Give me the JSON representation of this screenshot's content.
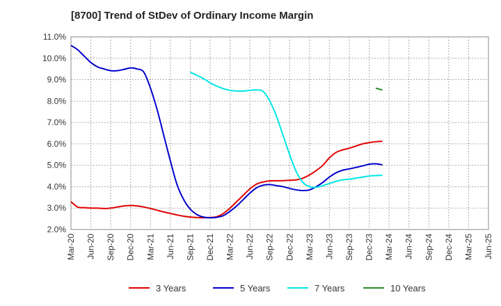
{
  "chart_data": {
    "type": "line",
    "title": "[8700]  Trend of StDev of Ordinary Income Margin",
    "xlabel": "",
    "ylabel": "",
    "x_ticks": [
      "Mar-20",
      "Jun-20",
      "Sep-20",
      "Dec-20",
      "Mar-21",
      "Jun-21",
      "Sep-21",
      "Dec-21",
      "Mar-22",
      "Jun-22",
      "Sep-22",
      "Dec-22",
      "Mar-23",
      "Jun-23",
      "Sep-23",
      "Dec-23",
      "Mar-24",
      "Jun-24",
      "Sep-24",
      "Dec-24",
      "Mar-25",
      "Jun-25"
    ],
    "y_ticks": [
      "2.0%",
      "3.0%",
      "4.0%",
      "5.0%",
      "6.0%",
      "7.0%",
      "8.0%",
      "9.0%",
      "10.0%",
      "11.0%"
    ],
    "ylim": [
      2.0,
      11.0
    ],
    "grid": true,
    "legend_position": "bottom",
    "series": [
      {
        "name": "3 Years",
        "color": "#e00000",
        "start_index": 0,
        "values": [
          3.3,
          3.05,
          3.02,
          3.0,
          3.0,
          2.98,
          3.0,
          3.05,
          3.1,
          3.12,
          3.1,
          3.05,
          2.98,
          2.9,
          2.82,
          2.75,
          2.68,
          2.62,
          2.58,
          2.56,
          2.55,
          2.56,
          2.6,
          2.75,
          3.0,
          3.3,
          3.6,
          3.9,
          4.12,
          4.22,
          4.27,
          4.28,
          4.28,
          4.3,
          4.32,
          4.4,
          4.55,
          4.75,
          5.0,
          5.35,
          5.6,
          5.72,
          5.8,
          5.9,
          6.0,
          6.06,
          6.1,
          6.12
        ]
      },
      {
        "name": "5 Years",
        "color": "#0000cc",
        "start_index": 0,
        "values": [
          10.6,
          10.4,
          10.1,
          9.8,
          9.6,
          9.5,
          9.42,
          9.42,
          9.48,
          9.55,
          9.5,
          9.35,
          8.6,
          7.6,
          6.4,
          5.2,
          4.1,
          3.4,
          2.95,
          2.7,
          2.58,
          2.55,
          2.57,
          2.65,
          2.85,
          3.1,
          3.4,
          3.7,
          3.95,
          4.07,
          4.1,
          4.05,
          4.0,
          3.92,
          3.85,
          3.82,
          3.85,
          4.0,
          4.2,
          4.45,
          4.65,
          4.77,
          4.83,
          4.9,
          4.97,
          5.05,
          5.07,
          5.02
        ]
      },
      {
        "name": "7 Years",
        "color": "#00e5e5",
        "start_index": 18,
        "values": [
          9.35,
          9.2,
          9.05,
          8.85,
          8.7,
          8.58,
          8.5,
          8.47,
          8.47,
          8.5,
          8.52,
          8.45,
          8.0,
          7.3,
          6.4,
          5.5,
          4.7,
          4.2,
          4.0,
          3.97,
          4.05,
          4.15,
          4.25,
          4.32,
          4.35,
          4.4,
          4.45,
          4.5,
          4.52,
          4.53
        ]
      },
      {
        "name": "10 Years",
        "color": "#2a8a2a",
        "start_index": 46,
        "values": [
          8.6,
          8.52
        ]
      }
    ]
  }
}
